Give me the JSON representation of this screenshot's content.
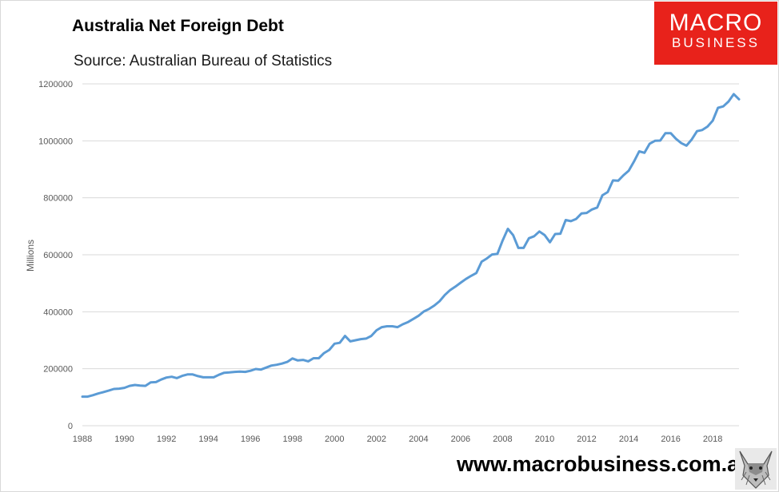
{
  "header": {
    "title": "Australia Net Foreign Debt",
    "subtitle": "Source: Australian Bureau of Statistics"
  },
  "logo": {
    "line1": "MACRO",
    "line2": "BUSINESS",
    "color": "#e8221b"
  },
  "footer": {
    "url": "www.macrobusiness.com.au"
  },
  "colors": {
    "line": "#5b9bd5",
    "grid": "#d9d9d9",
    "axis_text": "#595959"
  },
  "chart_data": {
    "type": "line",
    "title": "Australia Net Foreign Debt",
    "subtitle": "Source: Australian Bureau of Statistics",
    "xlabel": "",
    "ylabel": "Millions",
    "xlim": [
      1988,
      2019.25
    ],
    "ylim": [
      0,
      1200000
    ],
    "grid": true,
    "x_ticks": [
      1988,
      1990,
      1992,
      1994,
      1996,
      1998,
      2000,
      2002,
      2004,
      2006,
      2008,
      2010,
      2012,
      2014,
      2016,
      2018
    ],
    "y_ticks": [
      0,
      200000,
      400000,
      600000,
      800000,
      1000000,
      1200000
    ],
    "series": [
      {
        "x": [
          1988,
          1988.25,
          1988.5,
          1988.75,
          1989,
          1989.25,
          1989.5,
          1989.75,
          1990,
          1990.25,
          1990.5,
          1990.75,
          1991,
          1991.25,
          1991.5,
          1991.75,
          1992,
          1992.25,
          1992.5,
          1992.75,
          1993,
          1993.25,
          1993.5,
          1993.75,
          1994,
          1994.25,
          1994.5,
          1994.75,
          1995,
          1995.25,
          1995.5,
          1995.75,
          1996,
          1996.25,
          1996.5,
          1996.75,
          1997,
          1997.25,
          1997.5,
          1997.75,
          1998,
          1998.25,
          1998.5,
          1998.75,
          1999,
          1999.25,
          1999.5,
          1999.75,
          2000,
          2000.25,
          2000.5,
          2000.75,
          2001,
          2001.25,
          2001.5,
          2001.75,
          2002,
          2002.25,
          2002.5,
          2002.75,
          2003,
          2003.25,
          2003.5,
          2003.75,
          2004,
          2004.25,
          2004.5,
          2004.75,
          2005,
          2005.25,
          2005.5,
          2005.75,
          2006,
          2006.25,
          2006.5,
          2006.75,
          2007,
          2007.25,
          2007.5,
          2007.75,
          2008,
          2008.25,
          2008.5,
          2008.75,
          2009,
          2009.25,
          2009.5,
          2009.75,
          2010,
          2010.25,
          2010.5,
          2010.75,
          2011,
          2011.25,
          2011.5,
          2011.75,
          2012,
          2012.25,
          2012.5,
          2012.75,
          2013,
          2013.25,
          2013.5,
          2013.75,
          2014,
          2014.25,
          2014.5,
          2014.75,
          2015,
          2015.25,
          2015.5,
          2015.75,
          2016,
          2016.25,
          2016.5,
          2016.75,
          2017,
          2017.25,
          2017.5,
          2017.75,
          2018,
          2018.25,
          2018.5,
          2018.75,
          2019,
          2019.25
        ],
        "values": [
          102000,
          102000,
          107000,
          113000,
          118000,
          123000,
          129000,
          130000,
          133000,
          140000,
          143000,
          141000,
          140000,
          152000,
          153000,
          162000,
          169000,
          172000,
          167000,
          175000,
          180000,
          180000,
          174000,
          170000,
          170000,
          170000,
          179000,
          186000,
          187000,
          189000,
          190000,
          189000,
          193000,
          199000,
          197000,
          204000,
          211000,
          214000,
          218000,
          224000,
          236000,
          229000,
          231000,
          226000,
          237000,
          237000,
          255000,
          266000,
          288000,
          291000,
          315000,
          296000,
          300000,
          304000,
          306000,
          315000,
          335000,
          346000,
          349000,
          349000,
          346000,
          356000,
          364000,
          375000,
          386000,
          401000,
          410000,
          422000,
          437000,
          459000,
          476000,
          488000,
          502000,
          515000,
          526000,
          536000,
          576000,
          587000,
          601000,
          603000,
          650000,
          691000,
          669000,
          624000,
          624000,
          658000,
          665000,
          682000,
          669000,
          644000,
          673000,
          674000,
          722000,
          718000,
          726000,
          745000,
          747000,
          759000,
          766000,
          809000,
          820000,
          861000,
          860000,
          879000,
          895000,
          927000,
          963000,
          958000,
          990000,
          1000000,
          1001000,
          1027000,
          1027000,
          1007000,
          992000,
          983000,
          1005000,
          1034000,
          1038000,
          1050000,
          1071000,
          1116000,
          1121000,
          1138000,
          1164000,
          1146000
        ]
      }
    ]
  }
}
